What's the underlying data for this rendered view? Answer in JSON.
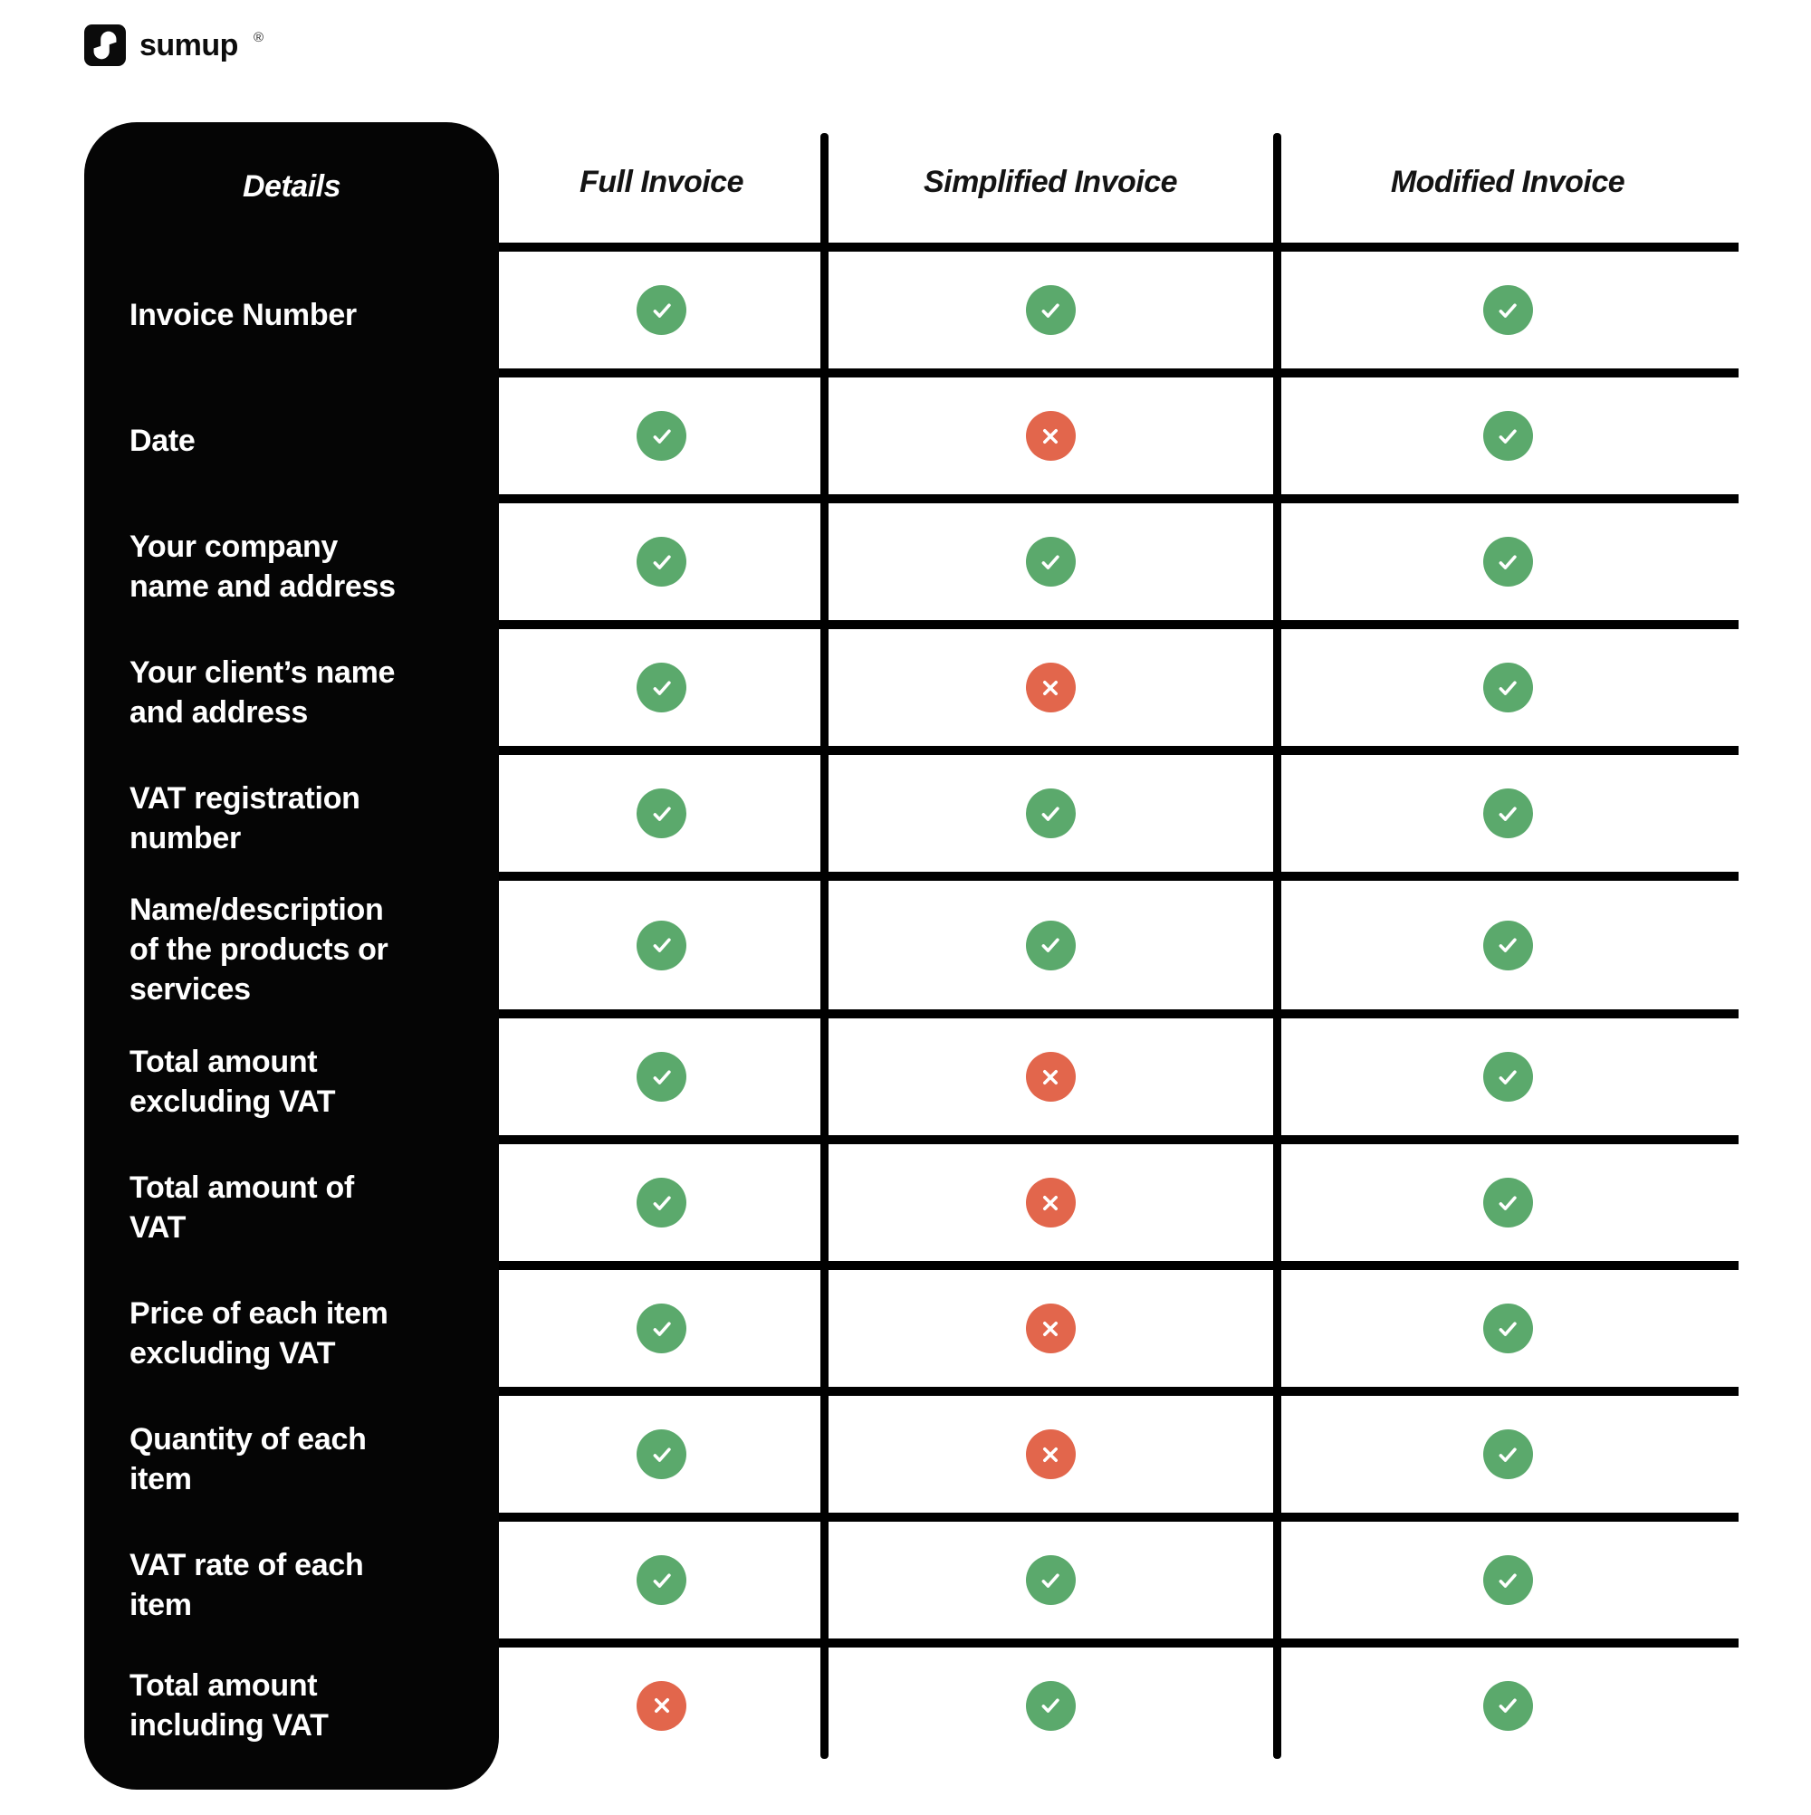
{
  "brand": {
    "wordmark": "sumup",
    "registered": "®"
  },
  "chart_data": {
    "type": "table",
    "columns": [
      "Details",
      "Full Invoice",
      "Simplified Invoice",
      "Modified Invoice"
    ],
    "value_meaning": {
      "yes": "included (green check)",
      "no": "not required (red cross)"
    },
    "colors": {
      "yes": "#5BA96C",
      "no": "#E2664C",
      "panel": "#050505",
      "grid_line": "#000000"
    },
    "rows": [
      {
        "label": "Invoice Number",
        "values": [
          "yes",
          "yes",
          "yes"
        ]
      },
      {
        "label": "Date",
        "values": [
          "yes",
          "no",
          "yes"
        ]
      },
      {
        "label": "Your company\nname and address",
        "values": [
          "yes",
          "yes",
          "yes"
        ]
      },
      {
        "label": "Your client’s name\nand address",
        "values": [
          "yes",
          "no",
          "yes"
        ]
      },
      {
        "label": "VAT registration\nnumber",
        "values": [
          "yes",
          "yes",
          "yes"
        ]
      },
      {
        "label": "Name/description\nof the products or\nservices",
        "values": [
          "yes",
          "yes",
          "yes"
        ]
      },
      {
        "label": "Total amount\nexcluding VAT",
        "values": [
          "yes",
          "no",
          "yes"
        ]
      },
      {
        "label": "Total amount of\nVAT",
        "values": [
          "yes",
          "no",
          "yes"
        ]
      },
      {
        "label": "Price of each item\nexcluding VAT",
        "values": [
          "yes",
          "no",
          "yes"
        ]
      },
      {
        "label": "Quantity of each\nitem",
        "values": [
          "yes",
          "no",
          "yes"
        ]
      },
      {
        "label": "VAT rate of each\nitem",
        "values": [
          "yes",
          "yes",
          "yes"
        ]
      },
      {
        "label": "Total amount\nincluding VAT",
        "values": [
          "no",
          "yes",
          "yes"
        ]
      }
    ]
  }
}
